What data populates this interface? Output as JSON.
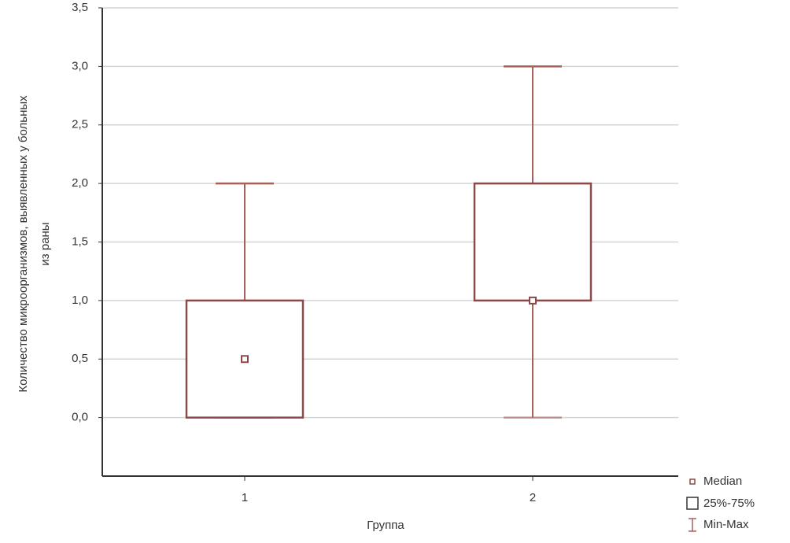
{
  "chart_data": {
    "type": "box",
    "ylabel": [
      "Количество микроорганизмов, выявленных у больных",
      "из раны"
    ],
    "xlabel": "Группа",
    "categories": [
      "1",
      "2"
    ],
    "boxes": [
      {
        "min": 0,
        "q1": 0,
        "median": 0.5,
        "q3": 1,
        "max": 2
      },
      {
        "min": 0,
        "q1": 1,
        "median": 1,
        "q3": 2,
        "max": 3
      }
    ],
    "color": "#8a4a4a",
    "whisker_color": "#a8605c",
    "ylim": [
      -0.5,
      3.5
    ],
    "yticks": [
      {
        "value": 0,
        "label": "0,0"
      },
      {
        "value": 0.5,
        "label": "0,5"
      },
      {
        "value": 1,
        "label": "1,0"
      },
      {
        "value": 1.5,
        "label": "1,5"
      },
      {
        "value": 2,
        "label": "2,0"
      },
      {
        "value": 2.5,
        "label": "2,5"
      },
      {
        "value": 3,
        "label": "3,0"
      },
      {
        "value": 3.5,
        "label": "3,5"
      }
    ],
    "grid": true,
    "legend": [
      "Median",
      "25%-75%",
      "Min-Max"
    ]
  }
}
